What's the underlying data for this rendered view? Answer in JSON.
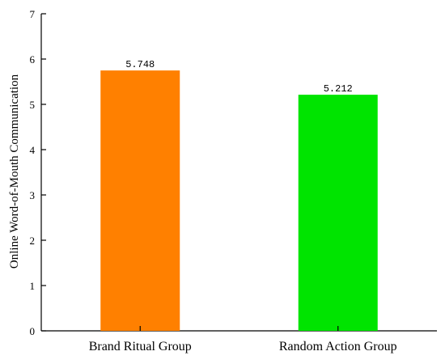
{
  "chart_data": {
    "type": "bar",
    "title": "",
    "xlabel": "",
    "ylabel": "Online Word-of-Mouth Communication",
    "categories": [
      "Brand Ritual Group",
      "Random Action Group"
    ],
    "values": [
      5.748,
      5.212
    ],
    "data_labels": [
      "5.748",
      "5.212"
    ],
    "bar_colors": [
      "#ff8000",
      "#00e400"
    ],
    "ylim": [
      0,
      7
    ],
    "yticks": [
      0,
      1,
      2,
      3,
      4,
      5,
      6,
      7
    ],
    "grid": false,
    "legend": "none"
  }
}
